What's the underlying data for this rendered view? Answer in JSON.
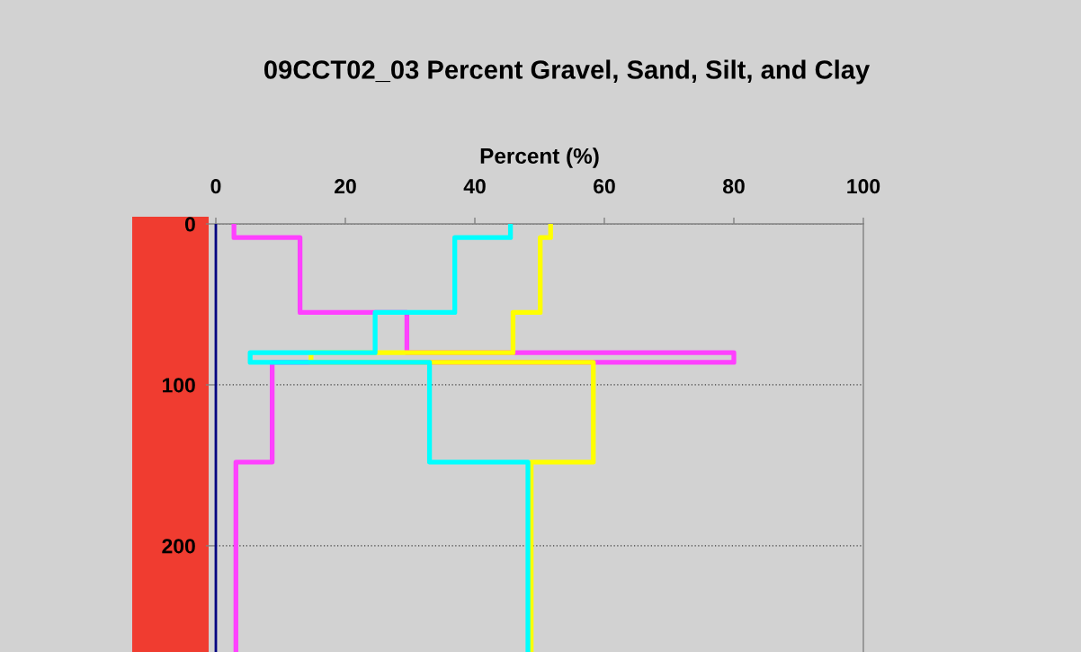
{
  "chart_data": {
    "type": "line",
    "title": "09CCT02_03 Percent Gravel, Sand, Silt, and Clay",
    "xlabel": "Percent (%)",
    "xlim": [
      0,
      100
    ],
    "xticks": [
      0,
      20,
      40,
      60,
      80,
      100
    ],
    "ylim": [
      266,
      0
    ],
    "yticks": [
      0,
      100,
      200
    ],
    "grid": "y",
    "marker": "none",
    "line_style": "solid",
    "series": [
      {
        "color": "#000080",
        "x": [
          0,
          0,
          0,
          0,
          0,
          0,
          0,
          0,
          0,
          0,
          0,
          0
        ],
        "values": [
          0,
          8.5,
          8.5,
          55,
          55,
          80,
          80,
          86,
          86,
          148,
          148,
          266
        ]
      },
      {
        "color": "#ff40ff",
        "x": [
          2.8,
          2.8,
          13,
          13,
          29.5,
          29.5,
          80,
          80,
          8.7,
          8.7,
          3.1,
          3.1
        ],
        "values": [
          0,
          8.5,
          8.5,
          55,
          55,
          80,
          80,
          86,
          86,
          148,
          148,
          266
        ]
      },
      {
        "color": "#ffff00",
        "x": [
          51.7,
          51.7,
          50.1,
          50.1,
          45.9,
          45.9,
          14.7,
          14.7,
          58.3,
          58.3,
          48.7,
          48.7
        ],
        "values": [
          0,
          8.5,
          8.5,
          55,
          55,
          80,
          80,
          86,
          86,
          148,
          148,
          266
        ]
      },
      {
        "color": "#00ffff",
        "x": [
          45.5,
          45.5,
          36.9,
          36.9,
          24.6,
          24.6,
          5.3,
          5.3,
          33.0,
          33.0,
          48.2,
          48.2
        ],
        "values": [
          0,
          8.5,
          8.5,
          55,
          55,
          80,
          80,
          86,
          86,
          148,
          148,
          266
        ]
      }
    ]
  }
}
